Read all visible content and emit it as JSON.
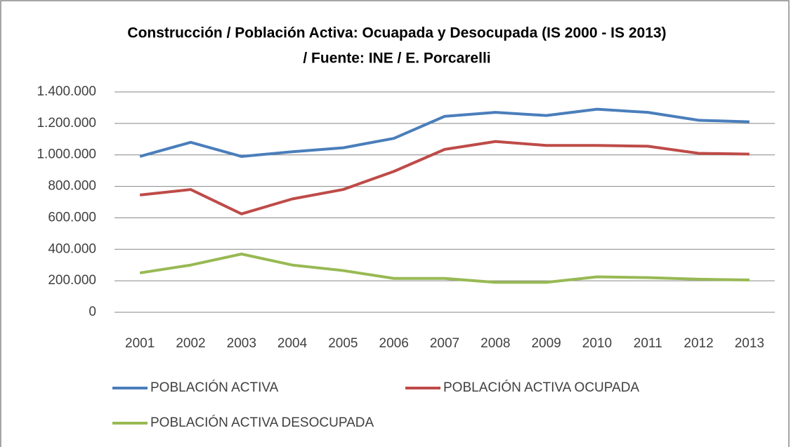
{
  "chart_data": {
    "type": "line",
    "title": [
      "Construcción / Población Activa: Ocuapada y Desocupada (IS 2000 - IS 2013)",
      "/ Fuente: INE / E. Porcarelli"
    ],
    "categories": [
      "2001",
      "2002",
      "2003",
      "2004",
      "2005",
      "2006",
      "2007",
      "2008",
      "2009",
      "2010",
      "2011",
      "2012",
      "2013"
    ],
    "series": [
      {
        "name": "POBLACIÓN ACTIVA",
        "color": "#4a7ebb",
        "values": [
          990000,
          1080000,
          990000,
          1020000,
          1045000,
          1105000,
          1245000,
          1270000,
          1250000,
          1290000,
          1270000,
          1220000,
          1210000
        ]
      },
      {
        "name": "POBLACIÓN ACTIVA OCUPADA",
        "color": "#be4b48",
        "values": [
          745000,
          780000,
          625000,
          720000,
          780000,
          895000,
          1035000,
          1085000,
          1060000,
          1060000,
          1055000,
          1010000,
          1005000
        ]
      },
      {
        "name": "POBLACIÓN ACTIVA DESOCUPADA",
        "color": "#98b954",
        "values": [
          250000,
          300000,
          370000,
          300000,
          265000,
          215000,
          215000,
          190000,
          190000,
          225000,
          220000,
          210000,
          205000
        ]
      }
    ],
    "ylim": [
      0,
      1400000
    ],
    "yticks": [
      0,
      {
        "value": 200000,
        "label": "200.000"
      },
      {
        "value": 400000,
        "label": "400.000"
      },
      {
        "value": 600000,
        "label": "600.000"
      },
      {
        "value": 800000,
        "label": "800.000"
      },
      {
        "value": 1000000,
        "label": "1.000.000"
      },
      {
        "value": 1200000,
        "label": "1.200.000"
      },
      {
        "value": 1400000,
        "label": "1.400.000"
      }
    ],
    "grid": true,
    "legend": "bottom"
  }
}
